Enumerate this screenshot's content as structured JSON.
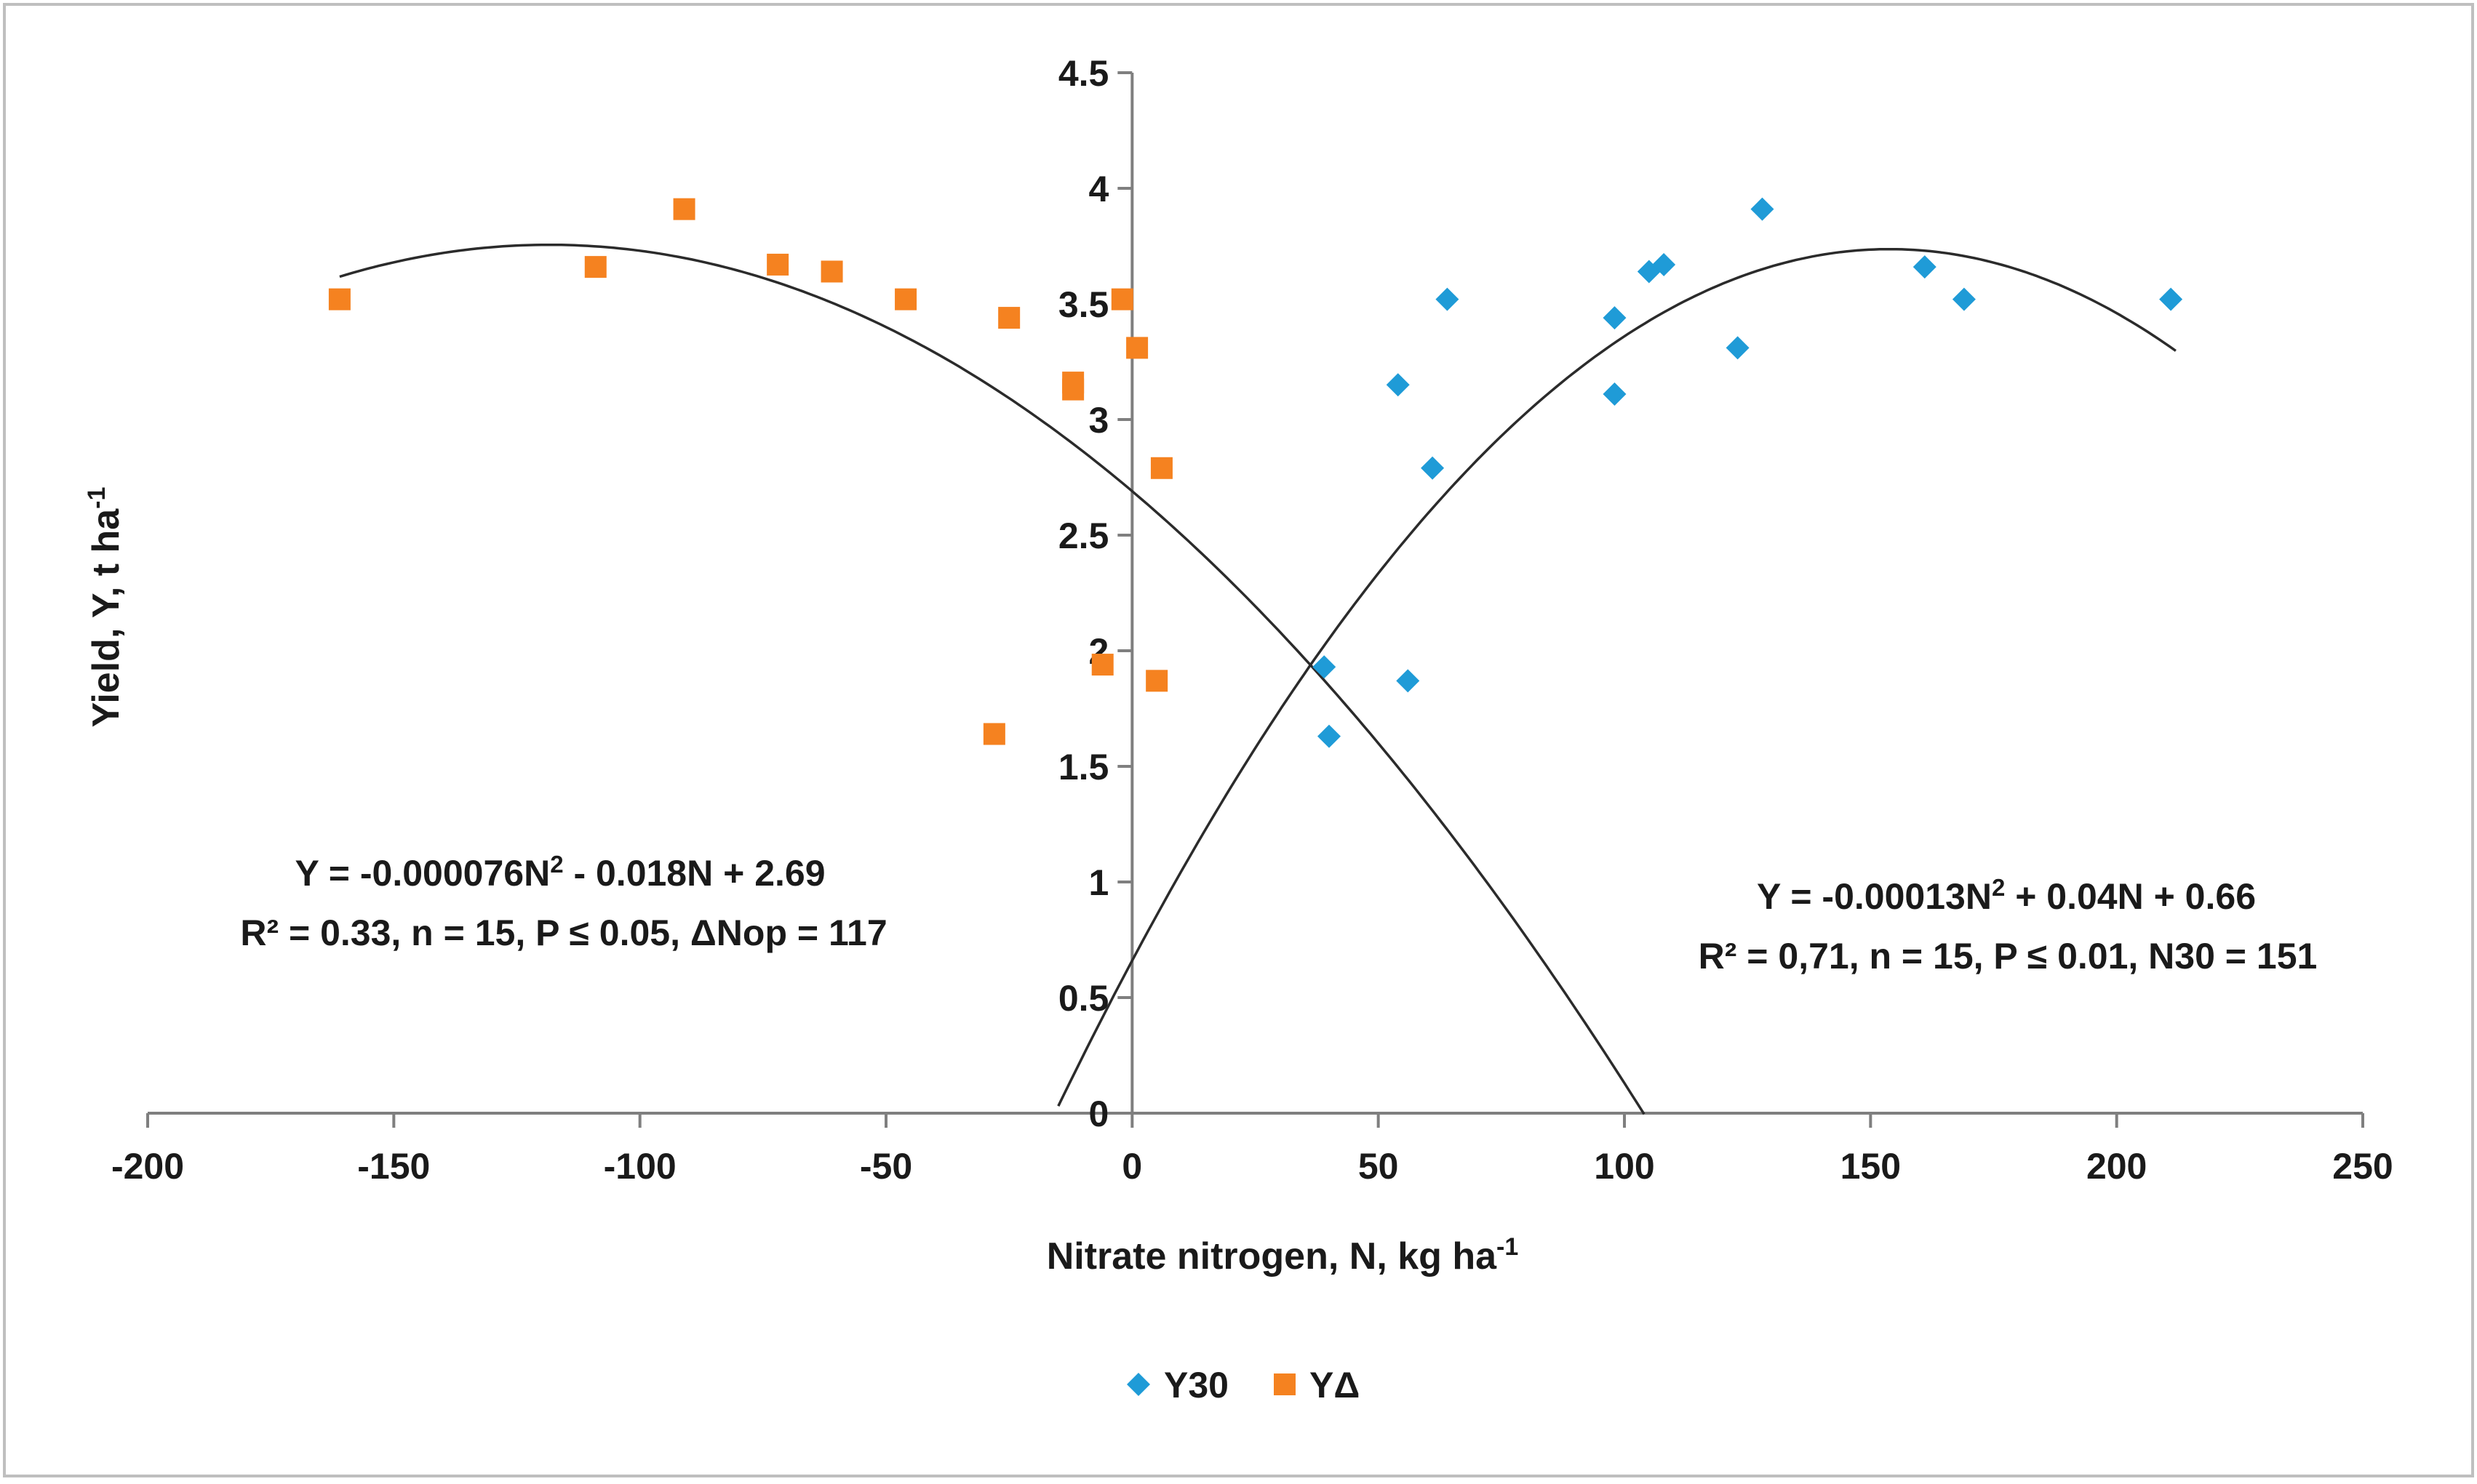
{
  "chart_data": {
    "type": "scatter",
    "title": "",
    "xlabel": "Nitrate nitrogen, N, kg ha",
    "xlabel_sup": "-1",
    "ylabel": "Yield, Y, t ha",
    "ylabel_sup": "-1",
    "xlim": [
      -200,
      250
    ],
    "ylim": [
      0,
      4.5
    ],
    "x_ticks": [
      -200,
      -150,
      -100,
      -50,
      0,
      50,
      100,
      150,
      200,
      250
    ],
    "y_ticks": [
      0,
      0.5,
      1,
      1.5,
      2,
      2.5,
      3,
      3.5,
      4,
      4.5
    ],
    "x_tick_labels": [
      "-200",
      "-150",
      "-100",
      "-50",
      "0",
      "50",
      "100",
      "150",
      "200",
      "250"
    ],
    "y_tick_labels": [
      "0",
      "0.5",
      "1",
      "1.5",
      "2",
      "2.5",
      "3",
      "3.5",
      "4",
      "4.5"
    ],
    "grid": false,
    "legend_position": "bottom-center",
    "series": [
      {
        "name": "Y30",
        "marker": "diamond",
        "color": "#1f9bd7",
        "points": [
          [
            39,
            1.93
          ],
          [
            40,
            1.63
          ],
          [
            54,
            3.15
          ],
          [
            56,
            1.87
          ],
          [
            61,
            2.79
          ],
          [
            64,
            3.52
          ],
          [
            98,
            3.44
          ],
          [
            98,
            3.11
          ],
          [
            105,
            3.64
          ],
          [
            108,
            3.67
          ],
          [
            123,
            3.31
          ],
          [
            128,
            3.91
          ],
          [
            161,
            3.66
          ],
          [
            169,
            3.52
          ],
          [
            211,
            3.52
          ]
        ]
      },
      {
        "name": "YΔ",
        "marker": "square",
        "color": "#f58220",
        "points": [
          [
            -161,
            3.52
          ],
          [
            -109,
            3.66
          ],
          [
            -91,
            3.91
          ],
          [
            -72,
            3.67
          ],
          [
            -61,
            3.64
          ],
          [
            -46,
            3.52
          ],
          [
            -28,
            1.64
          ],
          [
            -25,
            3.44
          ],
          [
            -12,
            3.16
          ],
          [
            -12,
            3.13
          ],
          [
            -6,
            1.94
          ],
          [
            -2,
            3.52
          ],
          [
            1,
            3.31
          ],
          [
            5,
            1.87
          ],
          [
            6,
            2.79
          ]
        ]
      }
    ],
    "trendlines": [
      {
        "series": "Y30",
        "a": -0.00013,
        "b": 0.04,
        "c": 0.66,
        "x_from": -15,
        "x_to": 212,
        "color": "#2b2b2b"
      },
      {
        "series": "YΔ",
        "a": -7.6e-05,
        "b": -0.018,
        "c": 2.69,
        "x_from": -161,
        "x_to": 104,
        "color": "#2b2b2b"
      }
    ],
    "annotations": {
      "left_eq": {
        "pre": "Y = -0.000076N",
        "sup": "2",
        "post": " - 0.018N + 2.69"
      },
      "left_stats": "R² = 0.33, n = 15, P ≤ 0.05, ΔNop = 117",
      "right_eq": {
        "pre": "Y = -0.00013N",
        "sup": "2",
        "post": " + 0.04N + 0.66"
      },
      "right_stats": "R² = 0,71, n = 15, P ≤ 0.01, N30 = 151"
    }
  }
}
